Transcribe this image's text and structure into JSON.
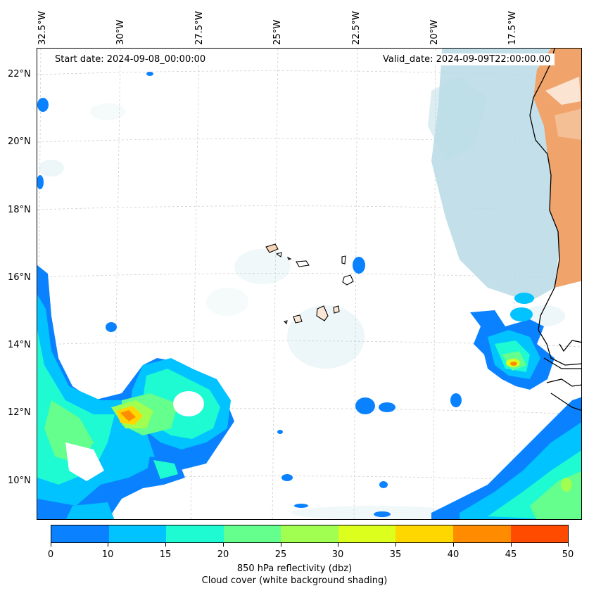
{
  "map": {
    "start_date": "Start date: 2024-09-08_00:00:00",
    "valid_date": "Valid_date: 2024-09-09T22:00:00.00",
    "lon_labels": [
      "32.5°W",
      "30°W",
      "27.5°W",
      "25°W",
      "22.5°W",
      "20°W",
      "17.5°W"
    ],
    "lat_labels": [
      "22°N",
      "20°N",
      "18°N",
      "16°N",
      "14°N",
      "12°N",
      "10°N"
    ],
    "colors": {
      "cloud_shading": "#b9dbe6",
      "land_desert": "#f0a36a",
      "coastline": "#000000",
      "gridline": "#c8c8c8"
    }
  },
  "colorbar": {
    "ticks": [
      "0",
      "10",
      "15",
      "20",
      "25",
      "30",
      "35",
      "40",
      "45",
      "50"
    ],
    "colors": [
      "#0a82ff",
      "#00c3ff",
      "#1efad2",
      "#64ff8c",
      "#a0ff50",
      "#dcff1e",
      "#ffd700",
      "#ff8c00",
      "#ff4b00"
    ],
    "label_line1": "850 hPa reflectivity (dbz)",
    "label_line2": "Cloud cover (white background shading)"
  }
}
